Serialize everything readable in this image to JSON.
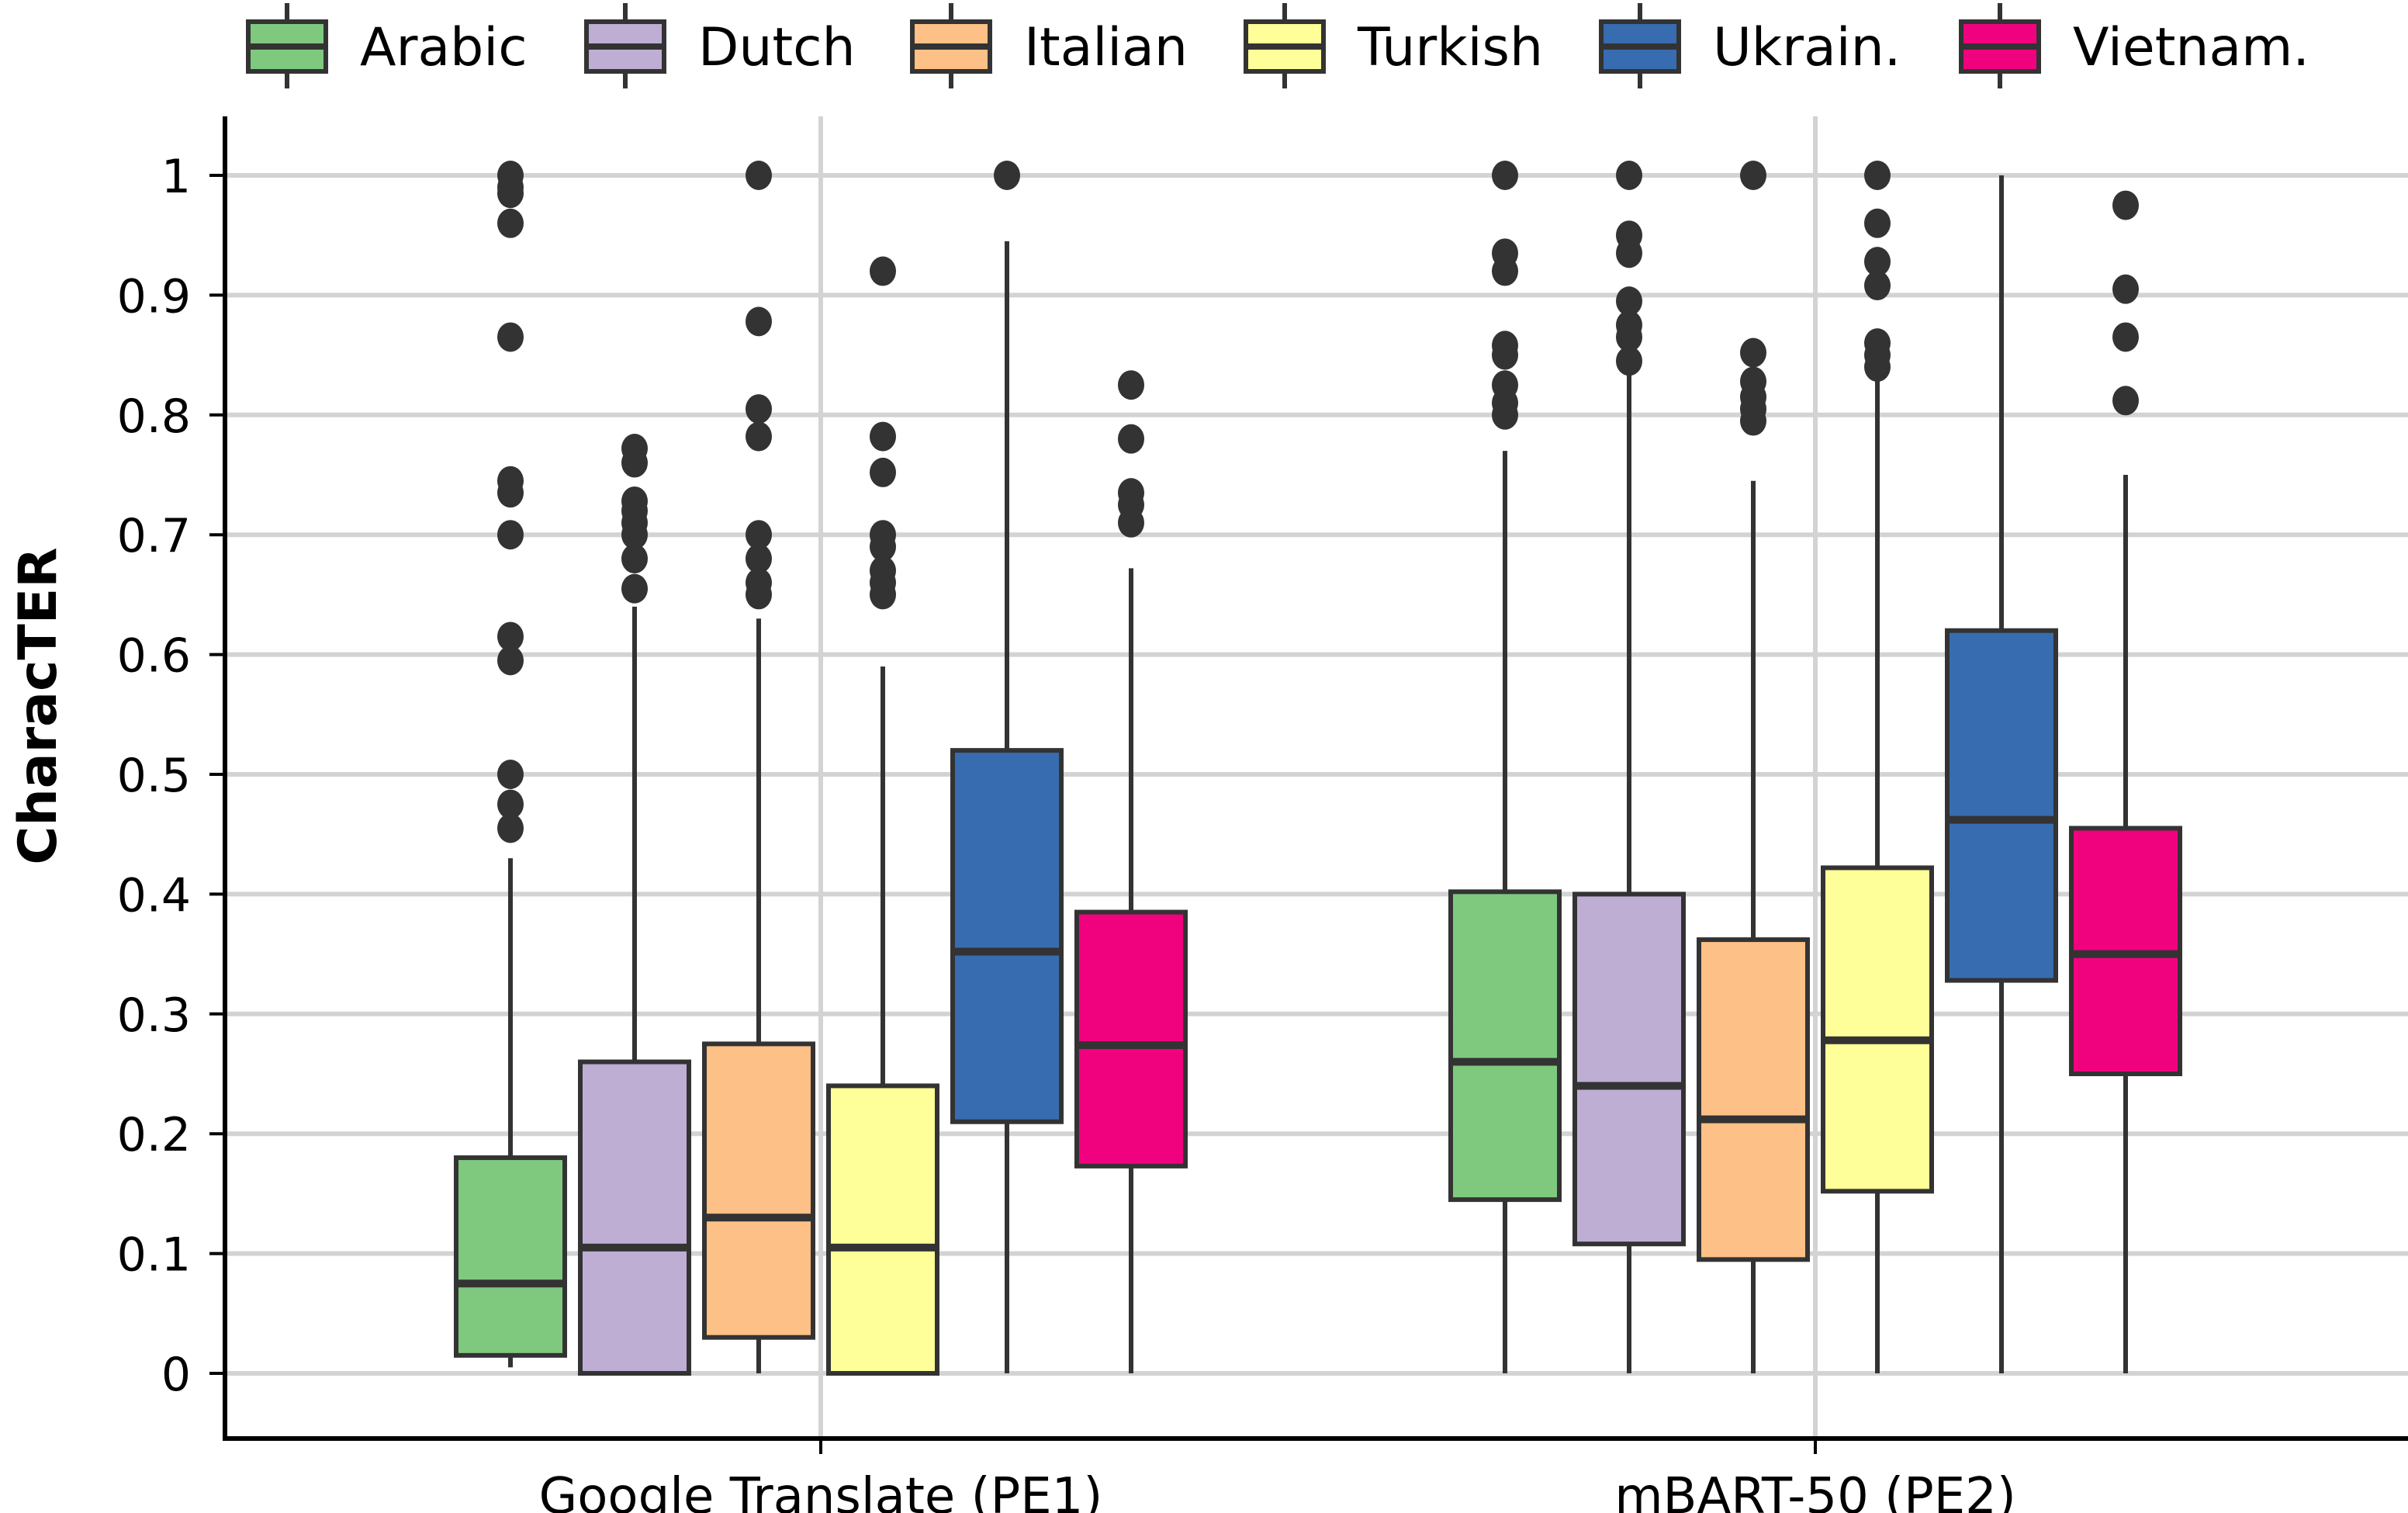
{
  "chart_data": {
    "type": "box",
    "title": "",
    "xlabel": "",
    "ylabel": "CharacTER",
    "ylim": [
      0,
      1
    ],
    "yticks": [
      "0",
      "0.1",
      "0.2",
      "0.3",
      "0.4",
      "0.5",
      "0.6",
      "0.7",
      "0.8",
      "0.9",
      "1"
    ],
    "grid": true,
    "legend_position": "top",
    "categories": [
      "Google Translate (PE1)",
      "mBART-50 (PE2)"
    ],
    "series": [
      {
        "name": "Arabic",
        "color": "#7fc97f",
        "boxes": [
          {
            "whislo": 0.005,
            "q1": 0.015,
            "med": 0.075,
            "q3": 0.18,
            "whishi": 0.43,
            "fliers": [
              1.0,
              0.99,
              0.985,
              0.96,
              0.865,
              0.745,
              0.735,
              0.7,
              0.615,
              0.595,
              0.5,
              0.475,
              0.455
            ]
          },
          {
            "whislo": 0.0,
            "q1": 0.145,
            "med": 0.26,
            "q3": 0.402,
            "whishi": 0.77,
            "fliers": [
              1.0,
              0.935,
              0.92,
              0.858,
              0.85,
              0.825,
              0.81,
              0.8
            ]
          }
        ]
      },
      {
        "name": "Dutch",
        "color": "#beaed4",
        "boxes": [
          {
            "whislo": 0.0,
            "q1": 0.0,
            "med": 0.105,
            "q3": 0.26,
            "whishi": 0.64,
            "fliers": [
              0.772,
              0.76,
              0.728,
              0.72,
              0.71,
              0.7,
              0.68,
              0.655
            ]
          },
          {
            "whislo": 0.0,
            "q1": 0.108,
            "med": 0.24,
            "q3": 0.4,
            "whishi": 0.84,
            "fliers": [
              1.0,
              0.95,
              0.935,
              0.895,
              0.875,
              0.865,
              0.845
            ]
          }
        ]
      },
      {
        "name": "Italian",
        "color": "#fdc086",
        "boxes": [
          {
            "whislo": 0.0,
            "q1": 0.03,
            "med": 0.13,
            "q3": 0.275,
            "whishi": 0.63,
            "fliers": [
              1.0,
              0.878,
              0.805,
              0.782,
              0.7,
              0.68,
              0.66,
              0.65
            ]
          },
          {
            "whislo": 0.0,
            "q1": 0.095,
            "med": 0.212,
            "q3": 0.362,
            "whishi": 0.745,
            "fliers": [
              1.0,
              0.852,
              0.828,
              0.815,
              0.805,
              0.795
            ]
          }
        ]
      },
      {
        "name": "Turkish",
        "color": "#ffff99",
        "boxes": [
          {
            "whislo": 0.0,
            "q1": 0.0,
            "med": 0.105,
            "q3": 0.24,
            "whishi": 0.59,
            "fliers": [
              0.92,
              0.782,
              0.752,
              0.7,
              0.69,
              0.67,
              0.66,
              0.65
            ]
          },
          {
            "whislo": 0.0,
            "q1": 0.152,
            "med": 0.278,
            "q3": 0.422,
            "whishi": 0.835,
            "fliers": [
              1.0,
              0.96,
              0.928,
              0.908,
              0.86,
              0.85,
              0.84
            ]
          }
        ]
      },
      {
        "name": "Ukrain.",
        "color": "#386cb0",
        "boxes": [
          {
            "whislo": 0.0,
            "q1": 0.21,
            "med": 0.352,
            "q3": 0.52,
            "whishi": 0.945,
            "fliers": [
              1.0
            ]
          },
          {
            "whislo": 0.0,
            "q1": 0.328,
            "med": 0.462,
            "q3": 0.62,
            "whishi": 1.0,
            "fliers": []
          }
        ]
      },
      {
        "name": "Vietnam.",
        "color": "#f0027f",
        "boxes": [
          {
            "whislo": 0.0,
            "q1": 0.173,
            "med": 0.274,
            "q3": 0.385,
            "whishi": 0.672,
            "fliers": [
              0.825,
              0.78,
              0.735,
              0.725,
              0.71
            ]
          },
          {
            "whislo": 0.0,
            "q1": 0.25,
            "med": 0.35,
            "q3": 0.455,
            "whishi": 0.75,
            "fliers": [
              0.975,
              0.905,
              0.865,
              0.812
            ]
          }
        ]
      }
    ]
  }
}
